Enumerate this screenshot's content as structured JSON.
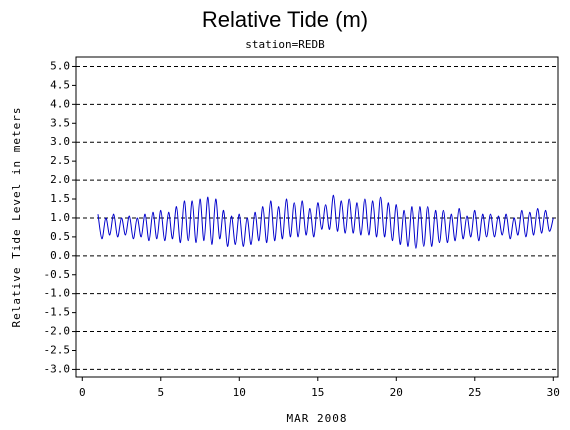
{
  "chart_data": {
    "type": "line",
    "title": "Relative Tide (m)",
    "subtitle": "station=REDB",
    "x_label": "MAR 2008",
    "y_label": "Relative Tide Level in meters",
    "xlim": [
      -0.4,
      30.3
    ],
    "xticks": [
      0,
      5,
      10,
      15,
      20,
      25,
      30
    ],
    "ylim": [
      -3.2,
      5.25
    ],
    "yticks": [
      {
        "value": 5,
        "label": "5.0"
      },
      4.5,
      {
        "value": 4,
        "label": "4.0"
      },
      3.5,
      {
        "value": 3,
        "label": "3.0"
      },
      2.5,
      {
        "value": 2,
        "label": "2.0"
      },
      1.5,
      {
        "value": 1,
        "label": "1.0"
      },
      0.5,
      {
        "value": 0,
        "label": "0.0"
      },
      -0.5,
      {
        "value": -1,
        "label": "-1.0"
      },
      -1.5,
      {
        "value": -2,
        "label": "-2.0"
      },
      -2.5,
      {
        "value": -3,
        "label": "-3.0"
      }
    ],
    "grid": true,
    "series": [
      {
        "name": "REDB",
        "color": "#0000cc",
        "x": [
          1,
          1.25,
          1.5,
          1.75,
          2,
          2.25,
          2.5,
          2.75,
          3,
          3.25,
          3.5,
          3.75,
          4,
          4.25,
          4.5,
          4.75,
          5,
          5.25,
          5.5,
          5.75,
          6,
          6.25,
          6.5,
          6.75,
          7,
          7.25,
          7.5,
          7.75,
          8,
          8.25,
          8.5,
          8.75,
          9,
          9.25,
          9.5,
          9.75,
          10,
          10.25,
          10.5,
          10.75,
          11,
          11.25,
          11.5,
          11.75,
          12,
          12.25,
          12.5,
          12.75,
          13,
          13.25,
          13.5,
          13.75,
          14,
          14.25,
          14.5,
          14.75,
          15,
          15.25,
          15.5,
          15.75,
          16,
          16.25,
          16.5,
          16.75,
          17,
          17.25,
          17.5,
          17.75,
          18,
          18.25,
          18.5,
          18.75,
          19,
          19.25,
          19.5,
          19.75,
          20,
          20.25,
          20.5,
          20.75,
          21,
          21.25,
          21.5,
          21.75,
          22,
          22.25,
          22.5,
          22.75,
          23,
          23.25,
          23.5,
          23.75,
          24,
          24.25,
          24.5,
          24.75,
          25,
          25.25,
          25.5,
          25.75,
          26,
          26.25,
          26.5,
          26.75,
          27,
          27.25,
          27.5,
          27.75,
          28,
          28.25,
          28.5,
          28.75,
          29,
          29.25,
          29.5,
          29.75,
          30
        ],
        "values": [
          1.1,
          0.45,
          1.0,
          0.55,
          1.1,
          0.5,
          1.0,
          0.55,
          1.05,
          0.45,
          1.0,
          0.5,
          1.1,
          0.4,
          1.15,
          0.45,
          1.2,
          0.4,
          1.15,
          0.45,
          1.3,
          0.35,
          1.45,
          0.4,
          1.45,
          0.35,
          1.5,
          0.4,
          1.55,
          0.3,
          1.5,
          0.45,
          1.2,
          0.25,
          1.05,
          0.3,
          1.1,
          0.25,
          1.0,
          0.3,
          1.15,
          0.4,
          1.3,
          0.35,
          1.45,
          0.4,
          1.3,
          0.45,
          1.5,
          0.5,
          1.4,
          0.5,
          1.45,
          0.55,
          1.25,
          0.5,
          1.4,
          0.7,
          1.35,
          0.7,
          1.6,
          0.65,
          1.45,
          0.6,
          1.5,
          0.6,
          1.4,
          0.55,
          1.5,
          0.55,
          1.45,
          0.5,
          1.55,
          0.5,
          1.4,
          0.4,
          1.35,
          0.3,
          1.2,
          0.25,
          1.3,
          0.2,
          1.3,
          0.25,
          1.3,
          0.25,
          1.2,
          0.35,
          1.2,
          0.35,
          1.1,
          0.4,
          1.25,
          0.45,
          1.05,
          0.5,
          1.2,
          0.4,
          1.1,
          0.5,
          1.1,
          0.5,
          1.05,
          0.55,
          1.1,
          0.45,
          1.0,
          0.55,
          1.2,
          0.5,
          1.15,
          0.55,
          1.25,
          0.6,
          1.2,
          0.65,
          1.0
        ]
      }
    ]
  }
}
